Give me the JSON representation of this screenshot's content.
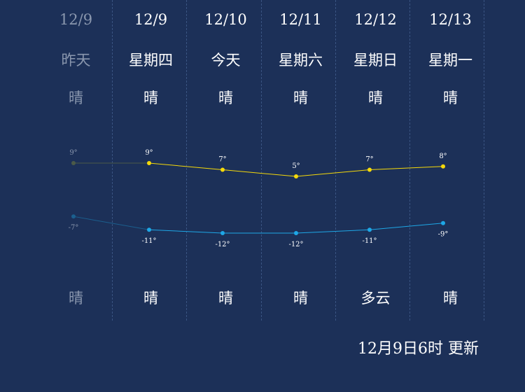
{
  "days": [
    {
      "date": "12/9",
      "weekday": "昨天",
      "weather_day": "晴",
      "weather_night": "晴",
      "high": 9,
      "low": -7,
      "high_label": "9°",
      "low_label": "-7°",
      "past": true
    },
    {
      "date": "12/9",
      "weekday": "星期四",
      "weather_day": "晴",
      "weather_night": "晴",
      "high": 9,
      "low": -11,
      "high_label": "9°",
      "low_label": "-11°",
      "past": false
    },
    {
      "date": "12/10",
      "weekday": "今天",
      "weather_day": "晴",
      "weather_night": "晴",
      "high": 7,
      "low": -12,
      "high_label": "7°",
      "low_label": "-12°",
      "past": false
    },
    {
      "date": "12/11",
      "weekday": "星期六",
      "weather_day": "晴",
      "weather_night": "晴",
      "high": 5,
      "low": -12,
      "high_label": "5°",
      "low_label": "-12°",
      "past": false
    },
    {
      "date": "12/12",
      "weekday": "星期日",
      "weather_day": "晴",
      "weather_night": "多云",
      "high": 7,
      "low": -11,
      "high_label": "7°",
      "low_label": "-11°",
      "past": false
    },
    {
      "date": "12/13",
      "weekday": "星期一",
      "weather_day": "晴",
      "weather_night": "晴",
      "high": 8,
      "low": -9,
      "high_label": "8°",
      "low_label": "-9°",
      "past": false
    }
  ],
  "update_text": "12月9日6时 更新",
  "colors": {
    "background": "#1c3058",
    "high_line": "#f5d90a",
    "low_line": "#1ea7e6",
    "past_high": "#4b5a48",
    "past_low": "#1b5f8e",
    "past_text": "#8a97ae"
  }
}
